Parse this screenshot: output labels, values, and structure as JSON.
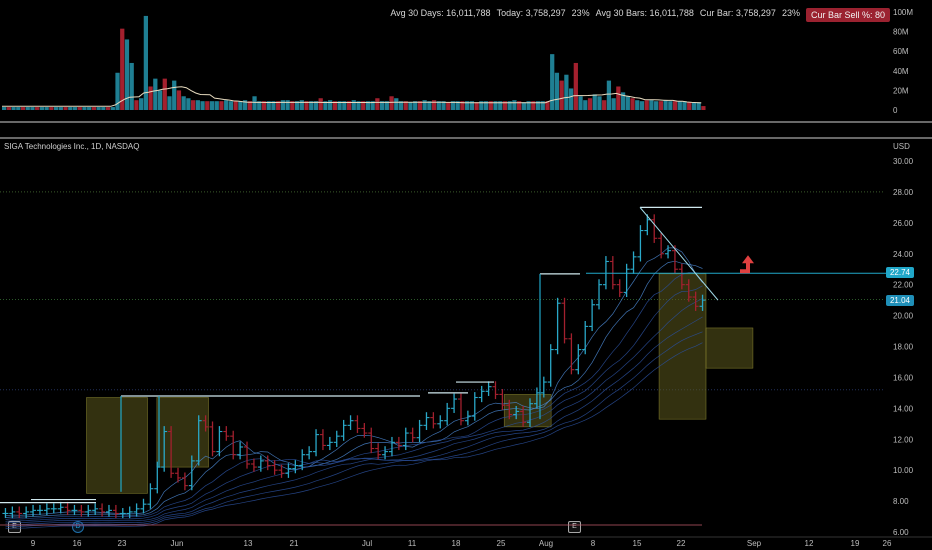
{
  "header": {
    "avg30days_label": "Avg 30 Days: 16,011,788",
    "today_label": "Today: 3,758,297",
    "today_pct": "23%",
    "avg30bars_label": "Avg 30 Bars: 16,011,788",
    "curbar_label": "Cur Bar: 3,758,297",
    "curbar_pct": "23%",
    "sell_badge": "Cur Bar Sell %: 80"
  },
  "colors": {
    "up": "#1b8fa0",
    "down": "#a3202e",
    "bar_up": "#2aa8c8",
    "ribbon": "#2a5fa8",
    "box_fill": "#6a6a1a",
    "price_tag": "#20a7c9",
    "accent_red": "#e04040"
  },
  "chart_data": [
    {
      "type": "bar",
      "title": "Volume",
      "y_ticks": [
        "100M",
        "80M",
        "60M",
        "40M",
        "20M",
        "0"
      ],
      "ylim": [
        0,
        100
      ],
      "units": "millions",
      "values": [
        3,
        3,
        3,
        3,
        3,
        3,
        3,
        3,
        3,
        3,
        3,
        3,
        3,
        3,
        3,
        3,
        3,
        3,
        3,
        3,
        3,
        3,
        3,
        3,
        38,
        83,
        72,
        48,
        10,
        12,
        96,
        24,
        32,
        20,
        32,
        14,
        30,
        20,
        14,
        12,
        10,
        10,
        9,
        9,
        9,
        9,
        9,
        10,
        9,
        9,
        9,
        10,
        9,
        14,
        9,
        9,
        9,
        9,
        9,
        10,
        10,
        9,
        9,
        10,
        9,
        9,
        9,
        12,
        9,
        10,
        9,
        9,
        9,
        9,
        10,
        9,
        9,
        9,
        9,
        12,
        9,
        9,
        14,
        12,
        9,
        9,
        8,
        9,
        9,
        10,
        9,
        10,
        9,
        9,
        8,
        9,
        9,
        9,
        9,
        9,
        8,
        9,
        9,
        9,
        9,
        9,
        9,
        9,
        10,
        9,
        8,
        9,
        9,
        9,
        9,
        9,
        57,
        38,
        30,
        36,
        22,
        48,
        14,
        10,
        12,
        16,
        14,
        10,
        30,
        12,
        24,
        18,
        14,
        12,
        10,
        9,
        10,
        10,
        9,
        9,
        10,
        9,
        9,
        9,
        9,
        8,
        8,
        8,
        4
      ]
    },
    {
      "type": "line",
      "title": "SIGA Technologies Inc., 1D, NASDAQ",
      "ylabel": "USD",
      "y_ticks": [
        "30.00",
        "28.00",
        "26.00",
        "24.00",
        "22.00",
        "20.00",
        "18.00",
        "16.00",
        "14.00",
        "12.00",
        "10.00",
        "8.00",
        "6.00"
      ],
      "ylim": [
        6,
        31
      ],
      "x_ticks": [
        "9",
        "16",
        "23",
        "Jun",
        "13",
        "21",
        "Jul",
        "11",
        "18",
        "25",
        "Aug",
        "8",
        "15",
        "22",
        "Sep",
        "12",
        "19",
        "26"
      ],
      "last_price": "21.04",
      "level_price": "22.74",
      "closes": [
        7.2,
        7.3,
        7.2,
        7.3,
        7.4,
        7.4,
        7.5,
        7.5,
        7.6,
        7.4,
        7.4,
        7.3,
        7.4,
        7.5,
        7.3,
        7.4,
        7.2,
        7.2,
        7.3,
        7.5,
        7.8,
        8.8,
        10.2,
        12.5,
        9.8,
        9.5,
        9.0,
        10.6,
        13.2,
        12.8,
        11.2,
        12.5,
        12.2,
        11.0,
        11.5,
        10.4,
        10.2,
        10.6,
        10.3,
        10.0,
        9.8,
        10.1,
        10.3,
        11.0,
        11.2,
        12.3,
        11.6,
        11.8,
        12.2,
        12.9,
        13.2,
        12.7,
        12.4,
        11.4,
        11.0,
        11.2,
        11.8,
        11.6,
        12.4,
        12.1,
        12.9,
        13.4,
        13.0,
        13.2,
        14.0,
        14.6,
        13.2,
        13.5,
        14.7,
        15.1,
        15.4,
        14.9,
        14.2,
        13.6,
        13.8,
        13.1,
        14.3,
        15.0,
        15.7,
        17.8,
        20.8,
        18.5,
        16.5,
        17.8,
        19.3,
        20.7,
        22.0,
        23.5,
        22.0,
        21.5,
        23.0,
        23.8,
        25.5,
        26.2,
        25.0,
        24.0,
        24.2,
        23.0,
        22.0,
        21.2,
        20.6,
        21.0
      ]
    }
  ]
}
